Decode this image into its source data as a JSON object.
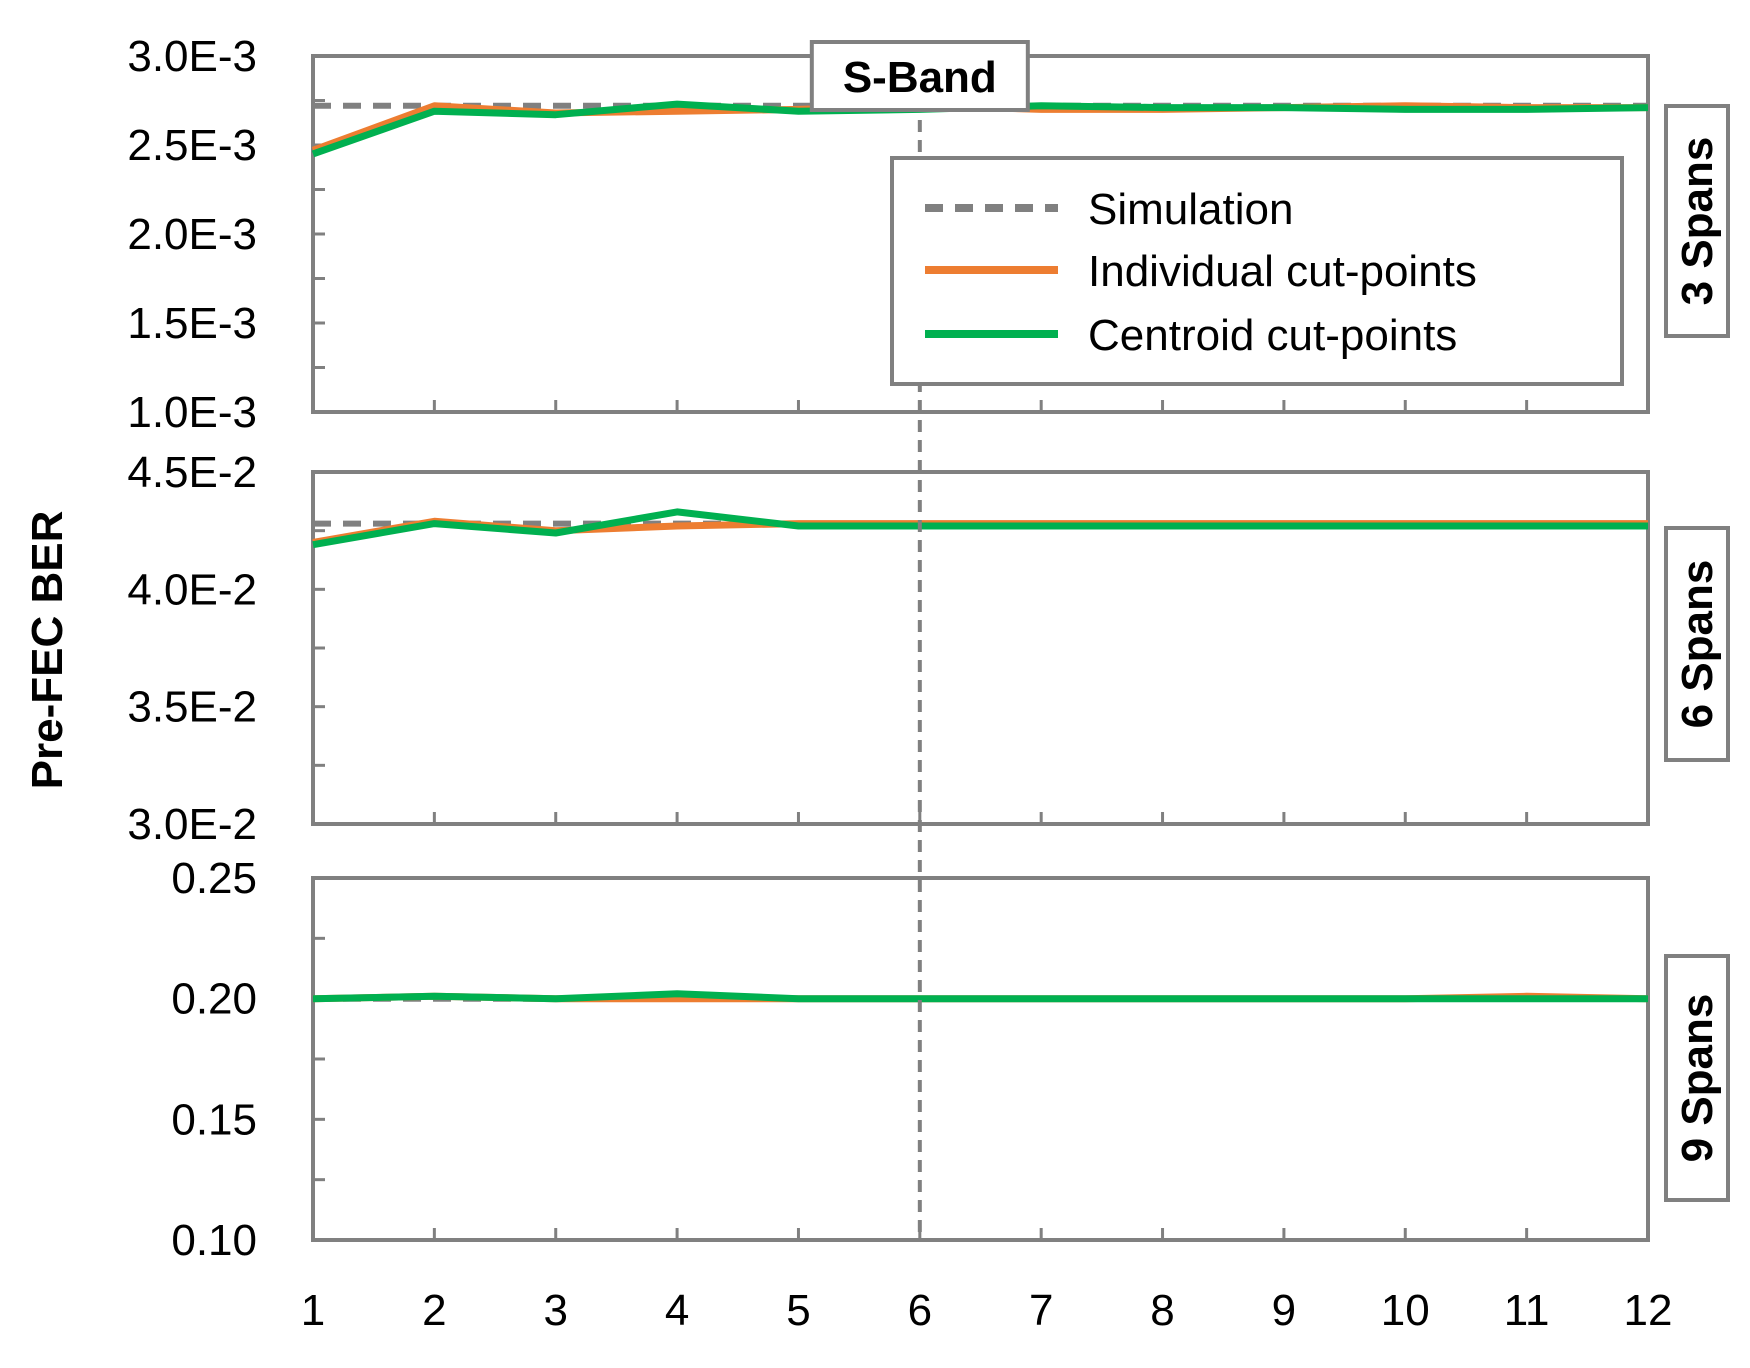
{
  "colors": {
    "simulation": "#808080",
    "individual": "#ed7d31",
    "centroid": "#00b050",
    "frame": "#808080"
  },
  "chart_data": {
    "type": "line",
    "ylabel": "Pre-FEC BER",
    "annotation": "S-Band",
    "annotation_x": 6,
    "x": [
      1,
      2,
      3,
      4,
      5,
      6,
      7,
      8,
      9,
      10,
      11,
      12
    ],
    "legend": {
      "placement": "top-right",
      "entries": [
        "Simulation",
        "Individual cut-points",
        "Centroid cut-points"
      ]
    },
    "panels": [
      {
        "label": "3 Spans",
        "ylim": [
          0.001,
          0.003
        ],
        "yticks": [
          0.001,
          0.0015,
          0.002,
          0.0025,
          0.003
        ],
        "ytick_labels": [
          "1.0E-3",
          "1.5E-3",
          "2.0E-3",
          "2.5E-3",
          "3.0E-3"
        ],
        "series": [
          {
            "name": "Simulation",
            "style": "dashed",
            "values": [
              0.00272,
              0.00272,
              0.00272,
              0.00272,
              0.00272,
              0.00272,
              0.00272,
              0.00272,
              0.00272,
              0.00272,
              0.00272,
              0.00272
            ]
          },
          {
            "name": "Individual cut-points",
            "style": "solid",
            "values": [
              0.00247,
              0.00272,
              0.00268,
              0.00269,
              0.0027,
              0.00272,
              0.0027,
              0.0027,
              0.00271,
              0.00272,
              0.00271,
              0.00271
            ]
          },
          {
            "name": "Centroid cut-points",
            "style": "solid",
            "values": [
              0.00245,
              0.00269,
              0.00267,
              0.00273,
              0.00269,
              0.0027,
              0.00272,
              0.00271,
              0.00271,
              0.0027,
              0.0027,
              0.00271
            ]
          }
        ]
      },
      {
        "label": "6 Spans",
        "ylim": [
          0.03,
          0.045
        ],
        "yticks": [
          0.03,
          0.035,
          0.04,
          0.045
        ],
        "ytick_labels": [
          "3.0E-2",
          "3.5E-2",
          "4.0E-2",
          "4.5E-2"
        ],
        "series": [
          {
            "name": "Simulation",
            "style": "dashed",
            "values": [
              0.0428,
              0.0428,
              0.0428,
              0.0428,
              0.0428,
              0.0428,
              0.0428,
              0.0428,
              0.0428,
              0.0428,
              0.0428,
              0.0428
            ]
          },
          {
            "name": "Individual cut-points",
            "style": "solid",
            "values": [
              0.042,
              0.0429,
              0.0425,
              0.0427,
              0.0428,
              0.0428,
              0.0428,
              0.0428,
              0.0428,
              0.0428,
              0.0428,
              0.0428
            ]
          },
          {
            "name": "Centroid cut-points",
            "style": "solid",
            "values": [
              0.0419,
              0.0428,
              0.0424,
              0.0433,
              0.0427,
              0.0427,
              0.0427,
              0.0427,
              0.0427,
              0.0427,
              0.0427,
              0.0427
            ]
          }
        ]
      },
      {
        "label": "9 Spans",
        "ylim": [
          0.1,
          0.25
        ],
        "yticks": [
          0.1,
          0.15,
          0.2,
          0.25
        ],
        "ytick_labels": [
          "0.10",
          "0.15",
          "0.20",
          "0.25"
        ],
        "series": [
          {
            "name": "Simulation",
            "style": "dashed",
            "values": [
              0.2,
              0.2,
              0.2,
              0.2,
              0.2,
              0.2,
              0.2,
              0.2,
              0.2,
              0.2,
              0.2,
              0.2
            ]
          },
          {
            "name": "Individual cut-points",
            "style": "solid",
            "values": [
              0.2,
              0.201,
              0.2,
              0.2,
              0.2,
              0.2,
              0.2,
              0.2,
              0.2,
              0.2,
              0.201,
              0.2
            ]
          },
          {
            "name": "Centroid cut-points",
            "style": "solid",
            "values": [
              0.2,
              0.201,
              0.2,
              0.202,
              0.2,
              0.2,
              0.2,
              0.2,
              0.2,
              0.2,
              0.2,
              0.2
            ]
          }
        ]
      }
    ]
  }
}
